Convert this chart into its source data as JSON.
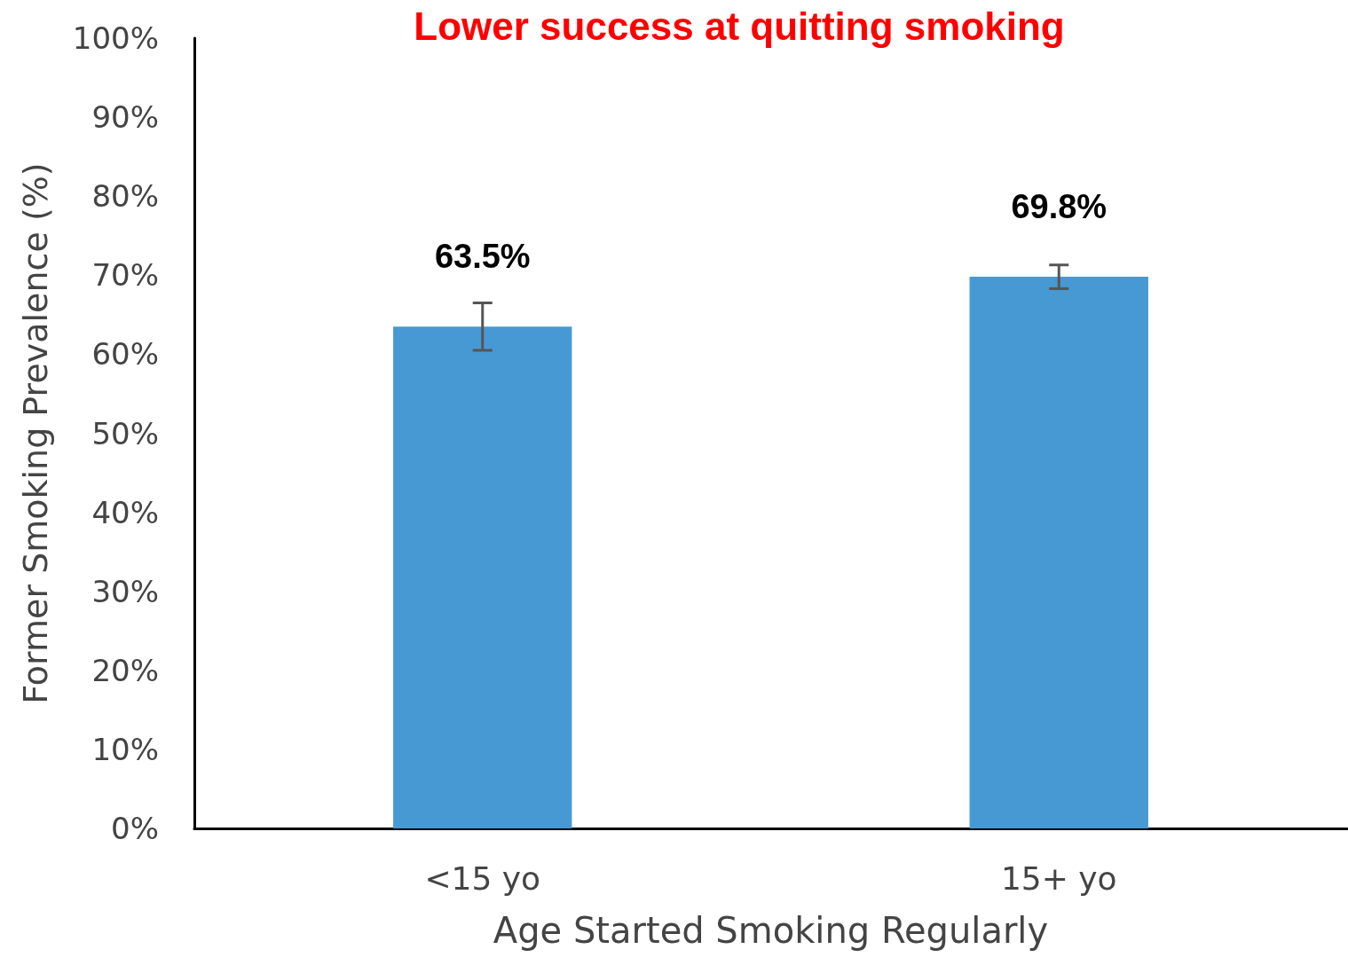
{
  "chart_data": {
    "type": "bar",
    "title": "Lower success at quitting smoking",
    "xlabel": "Age Started Smoking Regularly",
    "ylabel": "Former Smoking Prevalence (%)",
    "categories": [
      "<15 yo",
      "15+ yo"
    ],
    "values": [
      63.5,
      69.8
    ],
    "errors": [
      3,
      1.5
    ],
    "value_labels": [
      "63.5%",
      "69.8%"
    ],
    "color": "#4799d3",
    "ylim": [
      0,
      100
    ],
    "yticks": [
      {
        "value": 0,
        "label": "0%"
      },
      {
        "value": 10,
        "label": "10%"
      },
      {
        "value": 20,
        "label": "20%"
      },
      {
        "value": 30,
        "label": "30%"
      },
      {
        "value": 40,
        "label": "40%"
      },
      {
        "value": 50,
        "label": "50%"
      },
      {
        "value": 60,
        "label": "60%"
      },
      {
        "value": 70,
        "label": "70%"
      },
      {
        "value": 80,
        "label": "80%"
      },
      {
        "value": 90,
        "label": "90%"
      },
      {
        "value": 100,
        "label": "100%"
      }
    ],
    "grid": false
  }
}
